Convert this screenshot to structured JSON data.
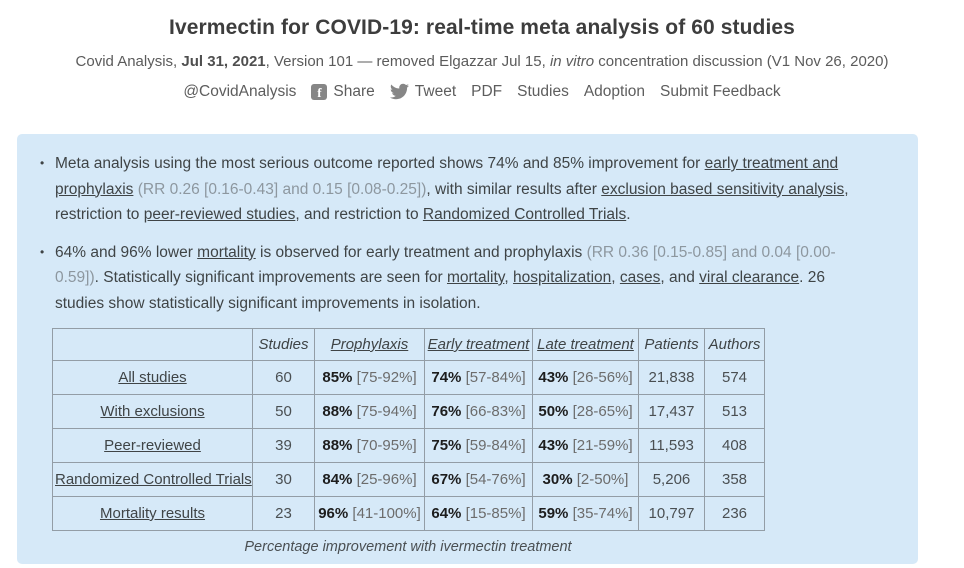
{
  "header": {
    "title": "Ivermectin for COVID-19: real-time meta analysis of 60 studies",
    "subtitle_segments": [
      {
        "t": "Covid Analysis, ",
        "s": "plain"
      },
      {
        "t": "Jul 31, 2021",
        "s": "bold"
      },
      {
        "t": ", Version 101 — removed Elgazzar Jul 15, ",
        "s": "plain"
      },
      {
        "t": "in vitro",
        "s": "italic"
      },
      {
        "t": " concentration discussion (V1 Nov 26, 2020)",
        "s": "plain"
      }
    ],
    "nav": {
      "handle": "@CovidAnalysis",
      "share_label": "Share",
      "tweet_label": "Tweet",
      "links": [
        "PDF",
        "Studies",
        "Adoption",
        "Submit Feedback"
      ]
    }
  },
  "icons": {
    "facebook_glyph": "f"
  },
  "summary": {
    "bullets": [
      {
        "segments": [
          {
            "t": "Meta analysis using the most serious outcome reported shows 74% and 85% improvement for ",
            "s": "plain"
          },
          {
            "t": "early treatment and prophylaxis",
            "s": "link"
          },
          {
            "t": " ",
            "s": "plain"
          },
          {
            "t": "(RR 0.26 [0.16-0.43] and 0.15 [0.08-0.25])",
            "s": "muted"
          },
          {
            "t": ", with similar results after ",
            "s": "plain"
          },
          {
            "t": "exclusion based sensitivity analysis",
            "s": "link"
          },
          {
            "t": ", restriction to ",
            "s": "plain"
          },
          {
            "t": "peer-reviewed studies",
            "s": "link"
          },
          {
            "t": ", and restriction to ",
            "s": "plain"
          },
          {
            "t": "Randomized Controlled Trials",
            "s": "link"
          },
          {
            "t": ".",
            "s": "plain"
          }
        ]
      },
      {
        "segments": [
          {
            "t": "64% and 96% lower ",
            "s": "plain"
          },
          {
            "t": "mortality",
            "s": "link"
          },
          {
            "t": " is observed for early treatment and prophylaxis ",
            "s": "plain"
          },
          {
            "t": "(RR 0.36 [0.15-0.85] and 0.04 [0.00-0.59])",
            "s": "muted"
          },
          {
            "t": ". Statistically significant improvements are seen for ",
            "s": "plain"
          },
          {
            "t": "mortality",
            "s": "link"
          },
          {
            "t": ", ",
            "s": "plain"
          },
          {
            "t": "hospitalization",
            "s": "link"
          },
          {
            "t": ", ",
            "s": "plain"
          },
          {
            "t": "cases",
            "s": "link"
          },
          {
            "t": ", and ",
            "s": "plain"
          },
          {
            "t": "viral clearance",
            "s": "link"
          },
          {
            "t": ". 26 studies show statistically significant improvements in isolation.",
            "s": "plain"
          }
        ]
      }
    ]
  },
  "table": {
    "columns": [
      {
        "key": "label",
        "label": "",
        "link": false
      },
      {
        "key": "studies",
        "label": "Studies",
        "link": false
      },
      {
        "key": "prophylaxis",
        "label": "Prophylaxis",
        "link": true
      },
      {
        "key": "early-treatment",
        "label": "Early treatment",
        "link": true
      },
      {
        "key": "late-treatment",
        "label": "Late treatment",
        "link": true
      },
      {
        "key": "patients",
        "label": "Patients",
        "link": false
      },
      {
        "key": "authors",
        "label": "Authors",
        "link": false
      }
    ],
    "rows": [
      {
        "label": "All studies",
        "studies": "60",
        "prophylaxis": {
          "pct": "85%",
          "range": "[75-92%]"
        },
        "early": {
          "pct": "74%",
          "range": "[57-84%]"
        },
        "late": {
          "pct": "43%",
          "range": "[26-56%]"
        },
        "patients": "21,838",
        "authors": "574"
      },
      {
        "label": "With exclusions",
        "studies": "50",
        "prophylaxis": {
          "pct": "88%",
          "range": "[75-94%]"
        },
        "early": {
          "pct": "76%",
          "range": "[66-83%]"
        },
        "late": {
          "pct": "50%",
          "range": "[28-65%]"
        },
        "patients": "17,437",
        "authors": "513"
      },
      {
        "label": "Peer-reviewed",
        "studies": "39",
        "prophylaxis": {
          "pct": "88%",
          "range": "[70-95%]"
        },
        "early": {
          "pct": "75%",
          "range": "[59-84%]"
        },
        "late": {
          "pct": "43%",
          "range": "[21-59%]"
        },
        "patients": "11,593",
        "authors": "408"
      },
      {
        "label": "Randomized Controlled Trials",
        "studies": "30",
        "prophylaxis": {
          "pct": "84%",
          "range": "[25-96%]"
        },
        "early": {
          "pct": "67%",
          "range": "[54-76%]"
        },
        "late": {
          "pct": "30%",
          "range": "[2-50%]"
        },
        "patients": "5,206",
        "authors": "358"
      },
      {
        "label": "Mortality results",
        "studies": "23",
        "prophylaxis": {
          "pct": "96%",
          "range": "[41-100%]"
        },
        "early": {
          "pct": "64%",
          "range": "[15-85%]"
        },
        "late": {
          "pct": "59%",
          "range": "[35-74%]"
        },
        "patients": "10,797",
        "authors": "236"
      }
    ],
    "caption": "Percentage improvement with ivermectin treatment"
  },
  "colors": {
    "box_background": "#d6e9f8",
    "body_text": "#3f4446",
    "muted_text": "#8d979f",
    "table_border": "#939da6",
    "bold_value": "#1d1d1d"
  }
}
